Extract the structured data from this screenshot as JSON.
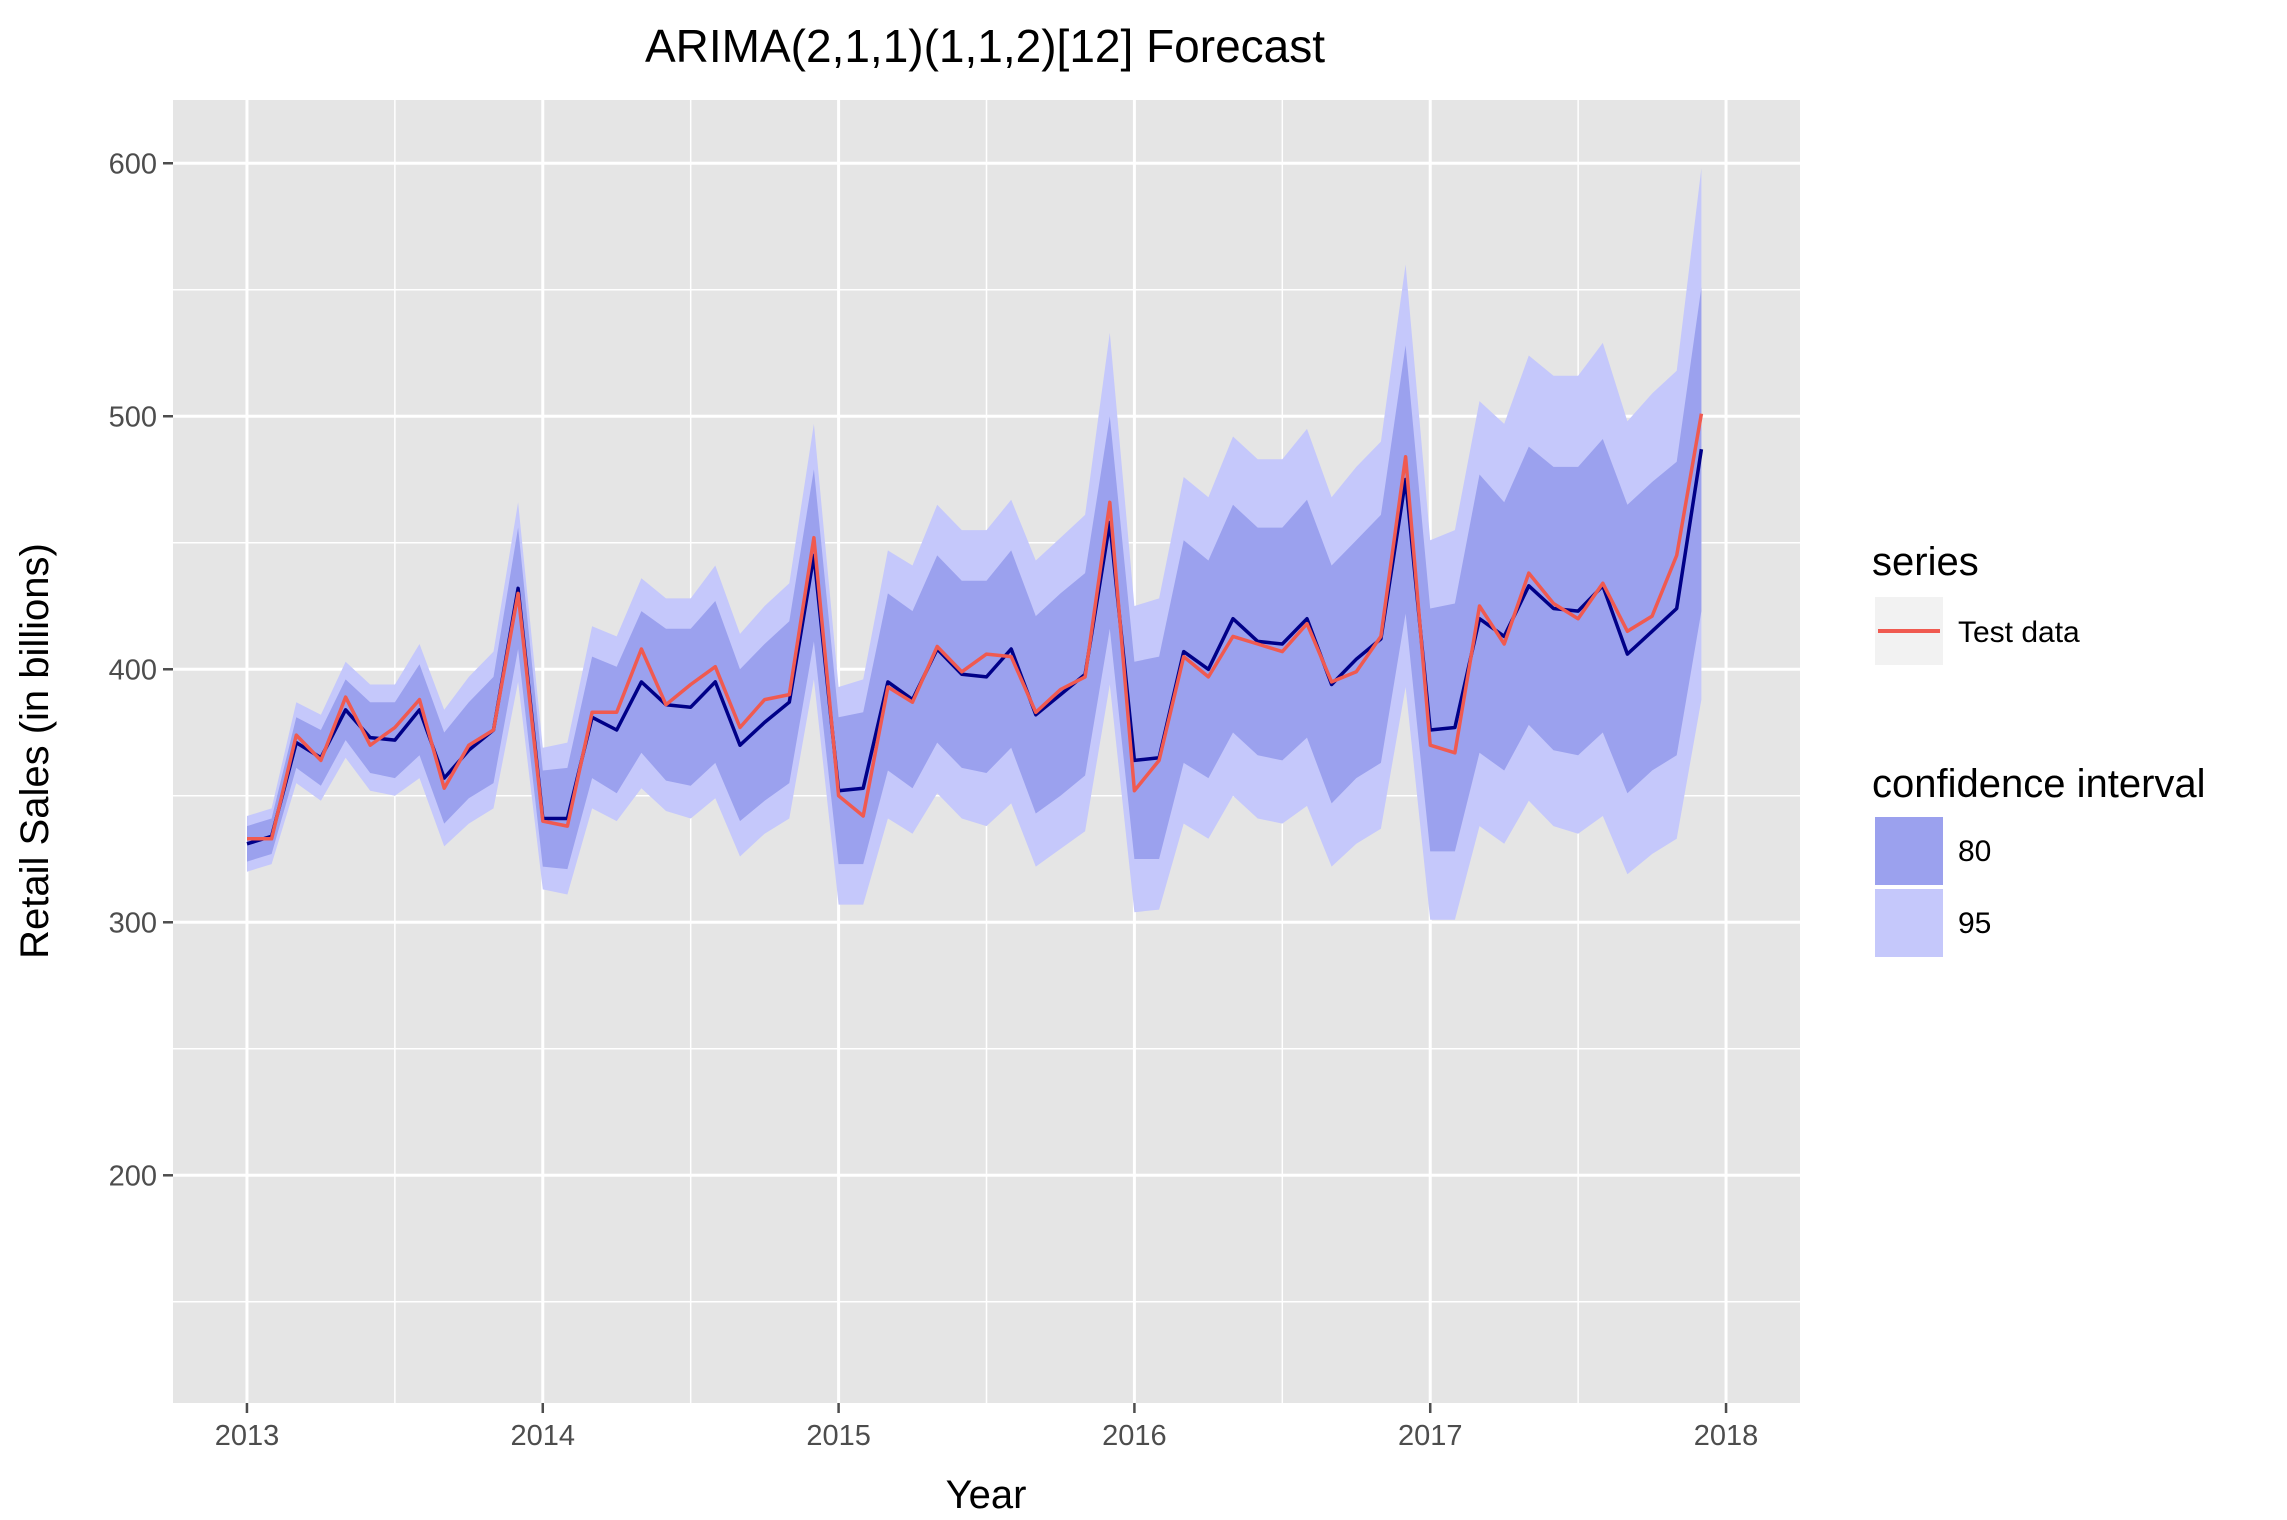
{
  "chart_data": {
    "type": "line",
    "title": "ARIMA(2,1,1)(1,1,2)[12] Forecast",
    "xlabel": "Year",
    "ylabel": "Retail Sales (in billions)",
    "xlim": [
      2012.75,
      2018.25
    ],
    "ylim": [
      110,
      625
    ],
    "x_ticks": [
      2013,
      2014,
      2015,
      2016,
      2017,
      2018
    ],
    "y_ticks": [
      200,
      300,
      400,
      500,
      600
    ],
    "grid": true,
    "legend_placement": "right",
    "colors": {
      "panel": "#e5e5e5",
      "grid": "#ffffff",
      "ci80": "#9ba1ee",
      "ci95": "#c5c8fb",
      "forecast": "#000088",
      "test": "#f05a50",
      "tick": "#4d4d4d",
      "key_bg": "#f2f2f2"
    },
    "x_start": 2013.0,
    "x_step": 0.0833333,
    "forecast": [
      331,
      334,
      371,
      365,
      384,
      373,
      372,
      384,
      357,
      368,
      376,
      432,
      341,
      341,
      381,
      376,
      395,
      386,
      385,
      395,
      370,
      379,
      387,
      445,
      352,
      353,
      395,
      388,
      408,
      398,
      397,
      408,
      382,
      390,
      398,
      458,
      364,
      365,
      407,
      400,
      420,
      411,
      410,
      420,
      394,
      404,
      412,
      475,
      376,
      377,
      420,
      413,
      433,
      424,
      423,
      433,
      406,
      415,
      424,
      487
    ],
    "test_data": [
      333,
      333,
      374,
      364,
      389,
      370,
      377,
      388,
      353,
      370,
      376,
      430,
      340,
      338,
      383,
      383,
      408,
      386,
      394,
      401,
      377,
      388,
      390,
      452,
      350,
      342,
      393,
      387,
      409,
      399,
      406,
      405,
      383,
      392,
      397,
      466,
      352,
      364,
      405,
      397,
      413,
      410,
      407,
      418,
      395,
      399,
      413,
      484,
      370,
      367,
      425,
      410,
      438,
      426,
      420,
      434,
      415,
      421,
      445,
      501
    ],
    "ci80_low": [
      324,
      327,
      361,
      354,
      372,
      359,
      357,
      366,
      339,
      349,
      355,
      408,
      322,
      321,
      357,
      351,
      367,
      356,
      354,
      363,
      340,
      348,
      355,
      411,
      323,
      323,
      360,
      353,
      371,
      361,
      359,
      369,
      343,
      350,
      358,
      416,
      325,
      325,
      363,
      357,
      375,
      366,
      364,
      373,
      347,
      357,
      363,
      422,
      328,
      328,
      367,
      360,
      378,
      368,
      366,
      375,
      351,
      360,
      366,
      423
    ],
    "ci80_high": [
      338,
      341,
      381,
      376,
      396,
      387,
      387,
      402,
      375,
      387,
      397,
      456,
      360,
      361,
      405,
      401,
      423,
      416,
      416,
      427,
      400,
      410,
      419,
      479,
      381,
      383,
      430,
      423,
      445,
      435,
      435,
      447,
      421,
      430,
      438,
      500,
      403,
      405,
      451,
      443,
      465,
      456,
      456,
      467,
      441,
      451,
      461,
      528,
      424,
      426,
      477,
      466,
      488,
      480,
      480,
      491,
      465,
      474,
      482,
      551
    ],
    "ci95_low": [
      320,
      323,
      355,
      348,
      365,
      352,
      350,
      357,
      330,
      339,
      345,
      395,
      313,
      311,
      345,
      340,
      353,
      344,
      341,
      349,
      326,
      335,
      341,
      396,
      307,
      307,
      341,
      335,
      351,
      341,
      338,
      347,
      322,
      329,
      336,
      394,
      304,
      305,
      339,
      333,
      350,
      341,
      339,
      346,
      322,
      331,
      337,
      393,
      301,
      301,
      338,
      331,
      348,
      338,
      335,
      342,
      319,
      327,
      333,
      388
    ],
    "ci95_high": [
      342,
      345,
      387,
      382,
      403,
      394,
      394,
      410,
      384,
      397,
      407,
      466,
      369,
      371,
      417,
      413,
      436,
      428,
      428,
      441,
      414,
      425,
      434,
      497,
      393,
      396,
      447,
      441,
      465,
      455,
      455,
      467,
      443,
      452,
      461,
      533,
      425,
      428,
      476,
      468,
      492,
      483,
      483,
      495,
      468,
      480,
      490,
      560,
      451,
      455,
      506,
      497,
      524,
      516,
      516,
      529,
      498,
      509,
      518,
      598
    ],
    "series": [
      {
        "name": "Test data"
      }
    ],
    "legend": {
      "series_title": "series",
      "series_label": "Test data",
      "ci_title": "confidence interval",
      "ci_labels": [
        "80",
        "95"
      ]
    }
  }
}
